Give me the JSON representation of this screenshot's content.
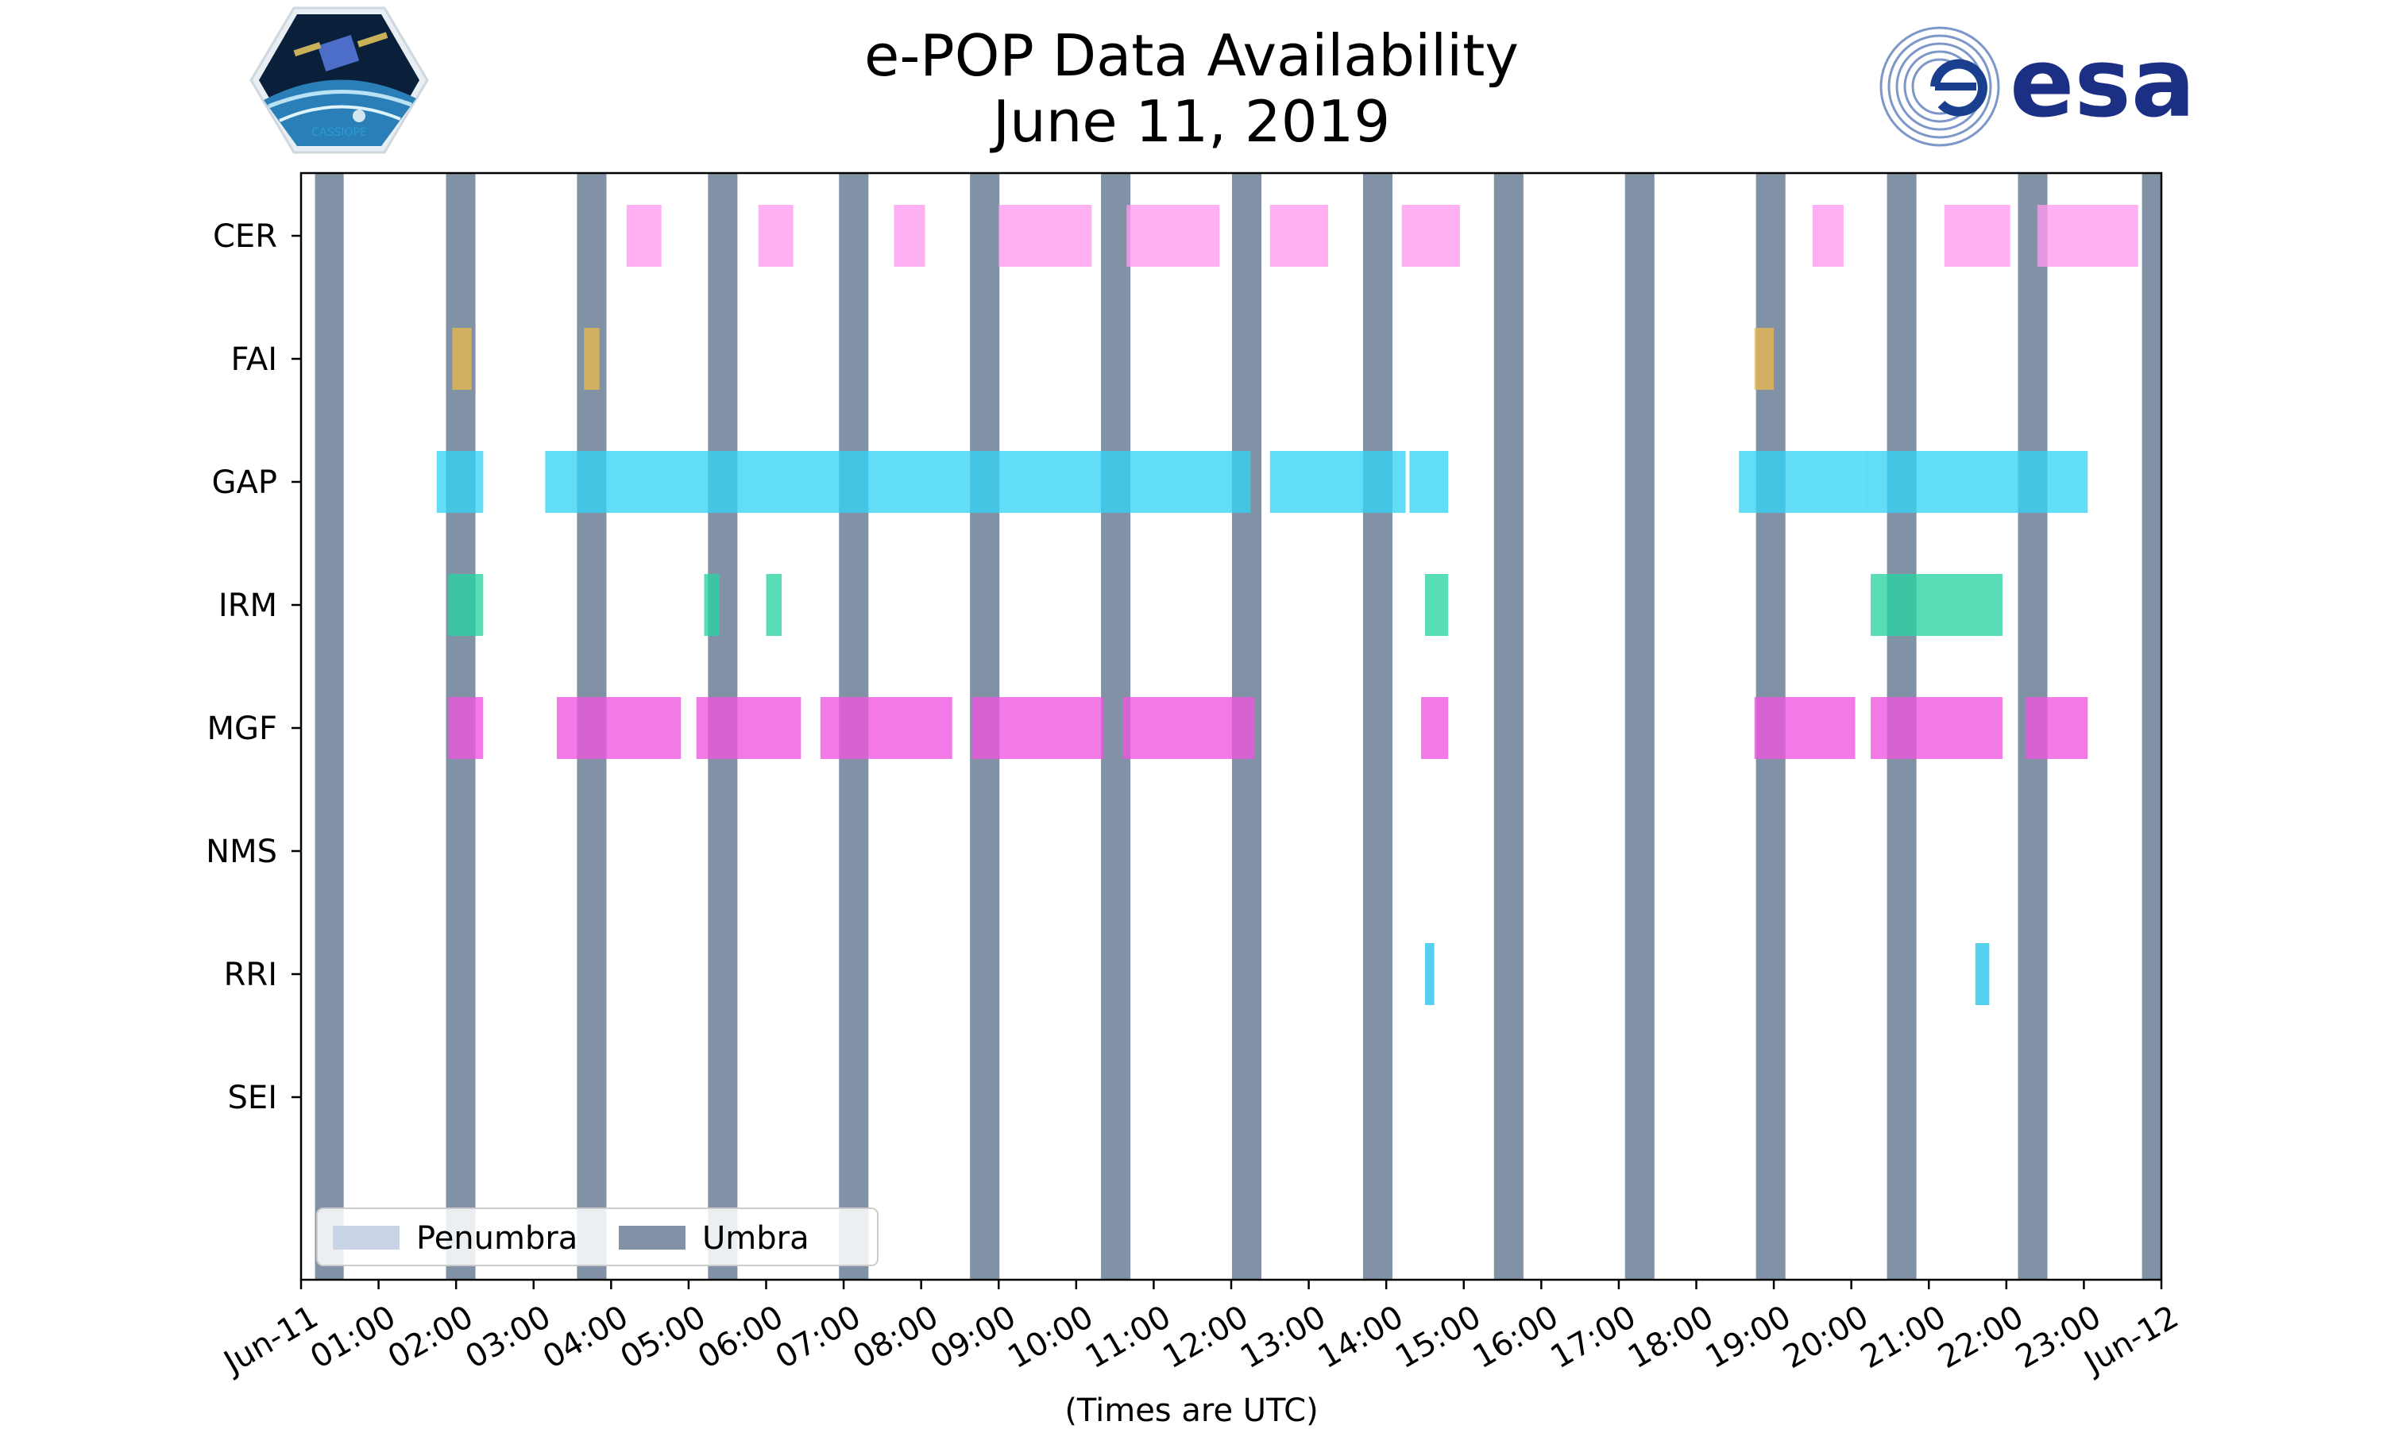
{
  "title": {
    "line1": "e-POP Data Availability",
    "line2": "June 11, 2019"
  },
  "logos": {
    "left_text": "CASSIOPE",
    "right_text": "esa"
  },
  "chart_data": {
    "type": "timeline",
    "title": "e-POP Data Availability June 11, 2019",
    "xlabel": "(Times are UTC)",
    "xlim_hours": [
      0,
      24
    ],
    "x_tick_hours": [
      0,
      1,
      2,
      3,
      4,
      5,
      6,
      7,
      8,
      9,
      10,
      11,
      12,
      13,
      14,
      15,
      16,
      17,
      18,
      19,
      20,
      21,
      22,
      23,
      24
    ],
    "x_tick_labels": [
      "Jun-11",
      "01:00",
      "02:00",
      "03:00",
      "04:00",
      "05:00",
      "06:00",
      "07:00",
      "08:00",
      "09:00",
      "10:00",
      "11:00",
      "12:00",
      "13:00",
      "14:00",
      "15:00",
      "16:00",
      "17:00",
      "18:00",
      "19:00",
      "20:00",
      "21:00",
      "22:00",
      "23:00",
      "Jun-12"
    ],
    "instruments": [
      "CER",
      "FAI",
      "GAP",
      "IRM",
      "MGF",
      "NMS",
      "RRI",
      "SEI"
    ],
    "legend": {
      "location": "lower-left",
      "entries": [
        {
          "label": "Penumbra",
          "color": "#c8d4e6"
        },
        {
          "label": "Umbra",
          "color": "#8192a6"
        }
      ]
    },
    "umbra_intervals": [
      [
        0.18,
        0.55
      ],
      [
        1.87,
        2.25
      ],
      [
        3.56,
        3.94
      ],
      [
        5.25,
        5.63
      ],
      [
        6.94,
        7.32
      ],
      [
        8.63,
        9.01
      ],
      [
        10.32,
        10.7
      ],
      [
        12.01,
        12.39
      ],
      [
        13.7,
        14.08
      ],
      [
        15.39,
        15.77
      ],
      [
        17.08,
        17.46
      ],
      [
        18.77,
        19.15
      ],
      [
        20.46,
        20.84
      ],
      [
        22.15,
        22.53
      ],
      [
        23.75,
        24.0
      ]
    ],
    "series": [
      {
        "name": "CER",
        "color": "#ff9af0",
        "intervals": [
          [
            4.2,
            4.65
          ],
          [
            5.9,
            6.35
          ],
          [
            7.65,
            8.05
          ],
          [
            9.0,
            10.2
          ],
          [
            10.65,
            11.85
          ],
          [
            12.5,
            13.25
          ],
          [
            14.2,
            14.95
          ],
          [
            19.5,
            19.9
          ],
          [
            21.2,
            22.05
          ],
          [
            22.4,
            23.7
          ]
        ]
      },
      {
        "name": "FAI",
        "color": "#e9b94e",
        "intervals": [
          [
            1.95,
            2.2
          ],
          [
            3.65,
            3.85
          ],
          [
            18.75,
            19.0
          ]
        ]
      },
      {
        "name": "GAP",
        "color": "#35d4f6",
        "intervals": [
          [
            1.75,
            2.35
          ],
          [
            3.15,
            5.2
          ],
          [
            5.2,
            12.25
          ],
          [
            12.5,
            14.25
          ],
          [
            14.3,
            14.8
          ],
          [
            18.55,
            20.15
          ],
          [
            20.15,
            23.05
          ]
        ]
      },
      {
        "name": "IRM",
        "color": "#29d3a3",
        "intervals": [
          [
            1.9,
            2.35
          ],
          [
            5.2,
            5.4
          ],
          [
            6.0,
            6.2
          ],
          [
            14.5,
            14.8
          ],
          [
            20.25,
            21.95
          ]
        ]
      },
      {
        "name": "MGF",
        "color": "#f055df",
        "intervals": [
          [
            1.9,
            2.35
          ],
          [
            3.3,
            4.9
          ],
          [
            5.1,
            6.45
          ],
          [
            6.7,
            8.4
          ],
          [
            8.65,
            10.35
          ],
          [
            10.6,
            12.3
          ],
          [
            14.45,
            14.8
          ],
          [
            18.75,
            20.05
          ],
          [
            20.25,
            21.95
          ],
          [
            22.25,
            23.05
          ]
        ]
      },
      {
        "name": "NMS",
        "color": "#888888",
        "intervals": []
      },
      {
        "name": "RRI",
        "color": "#25c4e8",
        "intervals": [
          [
            14.5,
            14.62
          ],
          [
            21.6,
            21.78
          ]
        ]
      },
      {
        "name": "SEI",
        "color": "#888888",
        "intervals": []
      }
    ]
  }
}
